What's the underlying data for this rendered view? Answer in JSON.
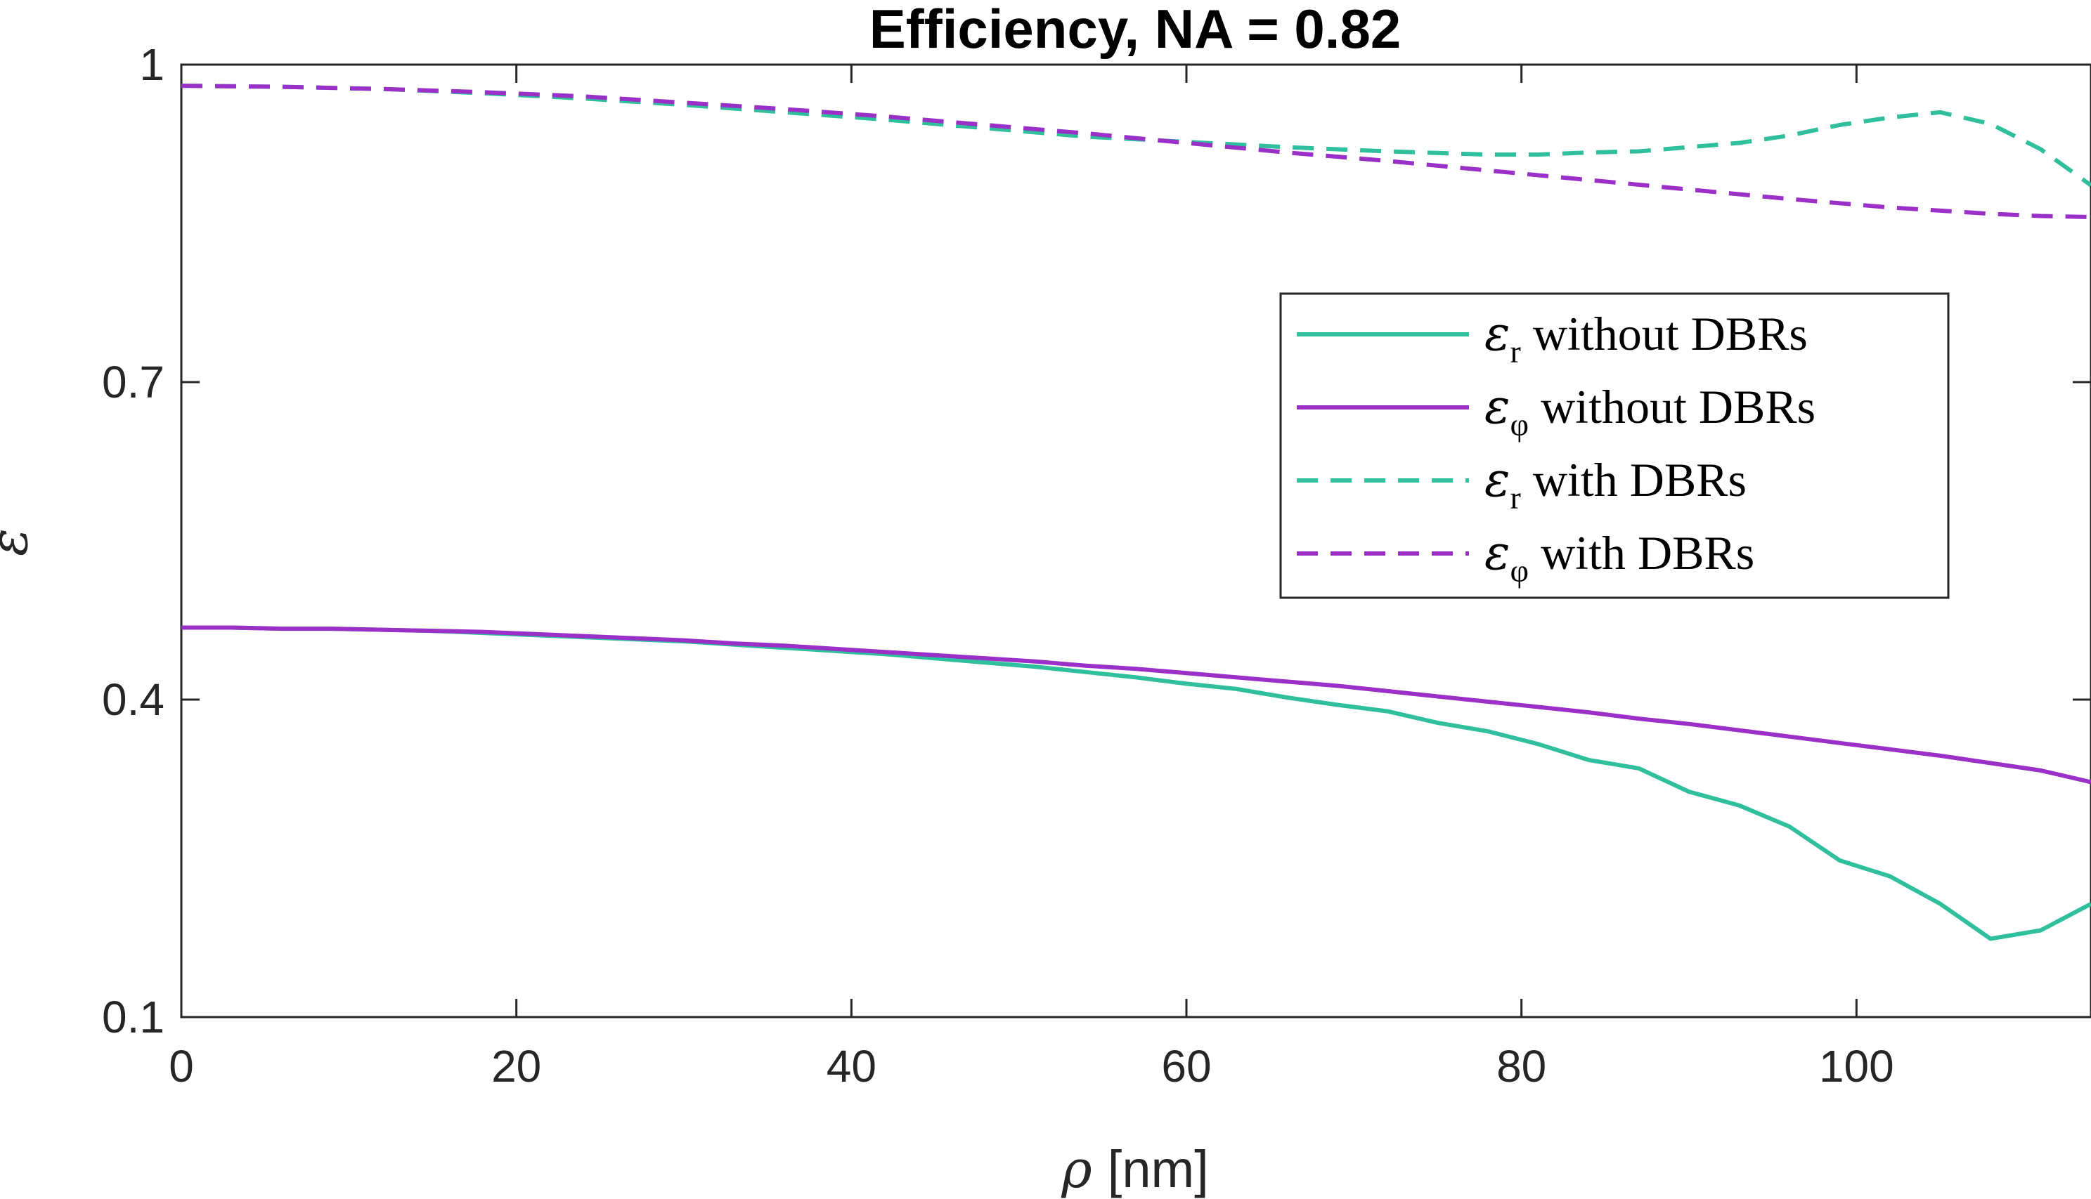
{
  "chart_data": {
    "type": "line",
    "title": "Efficiency, NA = 0.82",
    "xlabel": {
      "symbol": "ρ",
      "unit": "[nm]"
    },
    "ylabel": "ε",
    "xlim": [
      0,
      114
    ],
    "ylim": [
      0.1,
      1
    ],
    "xticks": [
      0,
      20,
      40,
      60,
      80,
      100
    ],
    "yticks": [
      0.1,
      0.4,
      0.7,
      1
    ],
    "ytick_labels": [
      "0.1",
      "0.4",
      "0.7",
      "1"
    ],
    "legend_position": "upper-right",
    "series": [
      {
        "name": "ε_r without DBRs",
        "legend": {
          "symbol": "ε",
          "sub": "r",
          "text": " without DBRs"
        },
        "color": "#2fbf9c",
        "dash": "solid",
        "x": [
          0,
          3,
          6,
          9,
          12,
          15,
          18,
          21,
          24,
          27,
          30,
          33,
          36,
          39,
          42,
          45,
          48,
          51,
          54,
          57,
          60,
          63,
          66,
          69,
          72,
          75,
          78,
          81,
          84,
          87,
          90,
          93,
          96,
          99,
          102,
          105,
          108,
          111,
          114
        ],
        "y": [
          0.468,
          0.468,
          0.467,
          0.467,
          0.466,
          0.465,
          0.463,
          0.461,
          0.459,
          0.457,
          0.455,
          0.452,
          0.449,
          0.446,
          0.443,
          0.439,
          0.435,
          0.431,
          0.426,
          0.421,
          0.415,
          0.41,
          0.402,
          0.395,
          0.389,
          0.378,
          0.37,
          0.358,
          0.343,
          0.335,
          0.313,
          0.3,
          0.28,
          0.248,
          0.233,
          0.207,
          0.174,
          0.182,
          0.207
        ]
      },
      {
        "name": "ε_φ without DBRs",
        "legend": {
          "symbol": "ε",
          "sub": "φ",
          "text": " without DBRs"
        },
        "color": "#9b30c8",
        "dash": "solid",
        "x": [
          0,
          3,
          6,
          9,
          12,
          15,
          18,
          21,
          24,
          27,
          30,
          33,
          36,
          39,
          42,
          45,
          48,
          51,
          54,
          57,
          60,
          63,
          66,
          69,
          72,
          75,
          78,
          81,
          84,
          87,
          90,
          93,
          96,
          99,
          102,
          105,
          108,
          111,
          114
        ],
        "y": [
          0.468,
          0.468,
          0.467,
          0.467,
          0.466,
          0.465,
          0.464,
          0.462,
          0.46,
          0.458,
          0.456,
          0.453,
          0.451,
          0.448,
          0.445,
          0.442,
          0.439,
          0.436,
          0.432,
          0.429,
          0.425,
          0.421,
          0.417,
          0.413,
          0.408,
          0.403,
          0.398,
          0.393,
          0.388,
          0.382,
          0.377,
          0.371,
          0.365,
          0.359,
          0.353,
          0.347,
          0.34,
          0.333,
          0.322
        ]
      },
      {
        "name": "ε_r with DBRs",
        "legend": {
          "symbol": "ε",
          "sub": "r",
          "text": " with DBRs"
        },
        "color": "#2fbf9c",
        "dash": "dashed",
        "x": [
          0,
          6,
          12,
          18,
          24,
          30,
          36,
          42,
          48,
          54,
          60,
          66,
          72,
          78,
          81,
          84,
          87,
          90,
          93,
          96,
          99,
          102,
          105,
          108,
          111,
          114
        ],
        "y": [
          0.98,
          0.979,
          0.977,
          0.973,
          0.968,
          0.962,
          0.955,
          0.948,
          0.94,
          0.932,
          0.927,
          0.922,
          0.918,
          0.915,
          0.915,
          0.917,
          0.918,
          0.922,
          0.926,
          0.933,
          0.943,
          0.95,
          0.955,
          0.944,
          0.92,
          0.886
        ]
      },
      {
        "name": "ε_φ with DBRs",
        "legend": {
          "symbol": "ε",
          "sub": "φ",
          "text": " with DBRs"
        },
        "color": "#9b30c8",
        "dash": "dashed",
        "x": [
          0,
          6,
          12,
          18,
          24,
          30,
          36,
          42,
          48,
          54,
          60,
          66,
          72,
          78,
          84,
          90,
          96,
          102,
          108,
          111,
          114
        ],
        "y": [
          0.98,
          0.979,
          0.977,
          0.974,
          0.97,
          0.964,
          0.958,
          0.951,
          0.943,
          0.935,
          0.926,
          0.917,
          0.909,
          0.9,
          0.891,
          0.882,
          0.873,
          0.865,
          0.859,
          0.857,
          0.856
        ]
      }
    ]
  }
}
